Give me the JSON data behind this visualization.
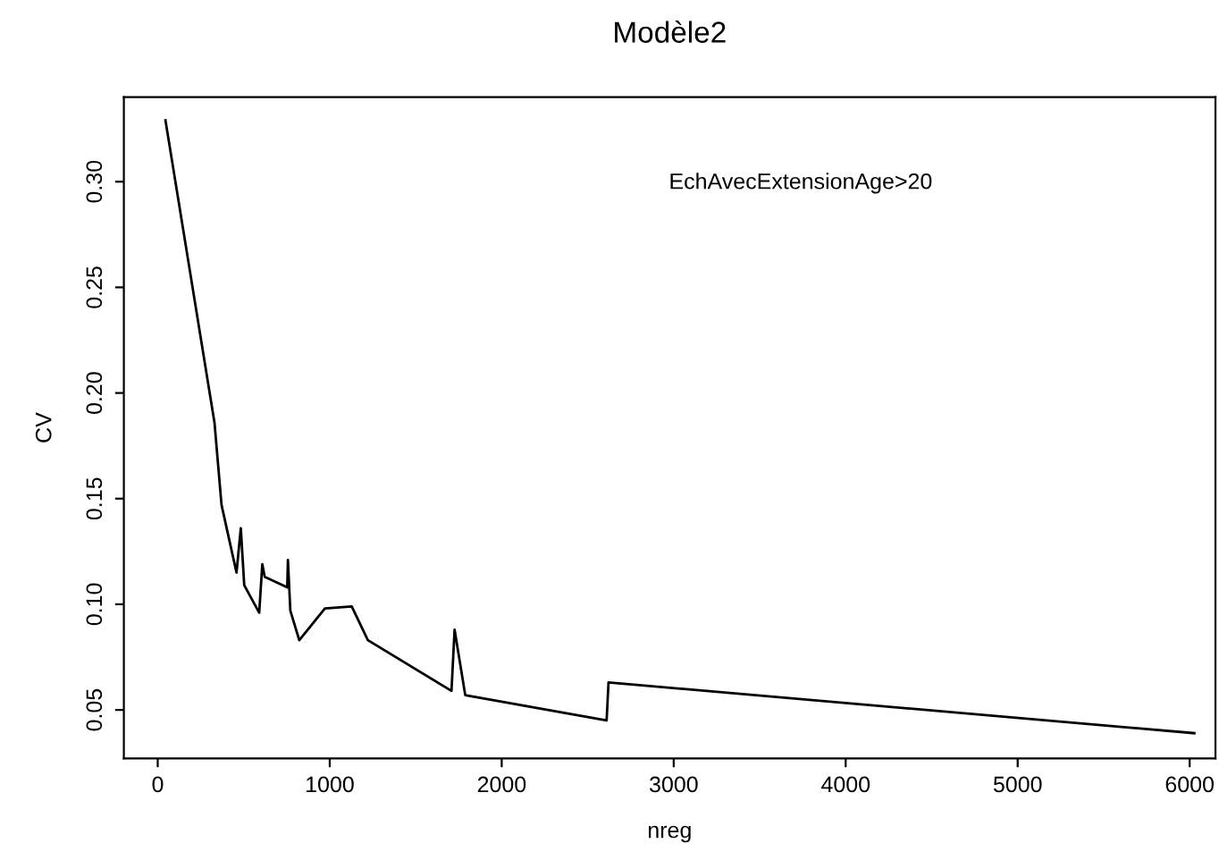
{
  "chart_data": {
    "type": "line",
    "title": "Modèle2",
    "xlabel": "nreg",
    "ylabel": "CV",
    "annotations": [
      "EchAvecExtensionAge>20"
    ],
    "x": [
      45,
      330,
      371,
      458,
      483,
      503,
      590,
      608,
      622,
      753,
      757,
      771,
      823,
      972,
      1128,
      1222,
      1708,
      1726,
      1788,
      2610,
      2621,
      6027
    ],
    "series": [
      {
        "color": "#000000",
        "values": [
          0.329,
          0.186,
          0.147,
          0.115,
          0.136,
          0.109,
          0.096,
          0.119,
          0.113,
          0.108,
          0.121,
          0.097,
          0.083,
          0.098,
          0.099,
          0.083,
          0.059,
          0.088,
          0.057,
          0.045,
          0.063,
          0.039
        ]
      }
    ],
    "xlim": [
      -197,
      6150
    ],
    "ylim": [
      0.027,
      0.34
    ],
    "xticks": [
      0,
      1000,
      2000,
      3000,
      4000,
      5000,
      6000
    ],
    "yticks": [
      {
        "value": 0.05,
        "label": "0.05"
      },
      {
        "value": 0.1,
        "label": "0.10"
      },
      {
        "value": 0.15,
        "label": "0.15"
      },
      {
        "value": 0.2,
        "label": "0.20"
      },
      {
        "value": 0.25,
        "label": "0.25"
      },
      {
        "value": 0.3,
        "label": "0.30"
      }
    ],
    "grid": false,
    "legend": false,
    "marker": "none",
    "line_style": "solid"
  }
}
